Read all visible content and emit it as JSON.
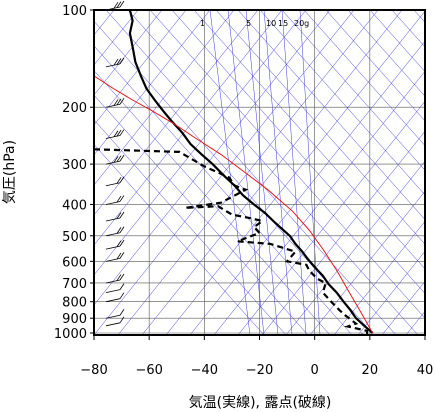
{
  "chart_data": {
    "type": "line",
    "xlabel": "気温(実線), 露点(破線)",
    "ylabel": "気圧(hPa)",
    "xlim": [
      -80,
      40
    ],
    "ylim": [
      1050,
      100
    ],
    "y_scale": "log",
    "x_ticks": [
      -80,
      -60,
      -40,
      -20,
      0,
      20,
      40
    ],
    "y_ticks": [
      100,
      200,
      300,
      400,
      500,
      600,
      700,
      800,
      900,
      1000
    ],
    "mixing_ratio_labels": [
      "1",
      "5",
      "10",
      "15",
      "20g"
    ],
    "series": [
      {
        "style": "solid",
        "color": "#000000",
        "points": [
          [
            -67,
            100
          ],
          [
            -66,
            108
          ],
          [
            -67,
            118
          ],
          [
            -66,
            130
          ],
          [
            -65,
            145
          ],
          [
            -63,
            160
          ],
          [
            -61,
            175
          ],
          [
            -58,
            190
          ],
          [
            -55,
            205
          ],
          [
            -52,
            220
          ],
          [
            -48,
            240
          ],
          [
            -45,
            260
          ],
          [
            -41,
            280
          ],
          [
            -37,
            300
          ],
          [
            -33,
            325
          ],
          [
            -29,
            350
          ],
          [
            -26,
            375
          ],
          [
            -22,
            400
          ],
          [
            -18,
            425
          ],
          [
            -15,
            450
          ],
          [
            -12,
            475
          ],
          [
            -9,
            500
          ],
          [
            -7,
            530
          ],
          [
            -4.5,
            560
          ],
          [
            -2.5,
            590
          ],
          [
            0,
            625
          ],
          [
            3,
            665
          ],
          [
            5,
            705
          ],
          [
            8,
            750
          ],
          [
            10.5,
            800
          ],
          [
            13,
            850
          ],
          [
            15,
            900
          ],
          [
            18,
            950
          ],
          [
            21,
            1000
          ]
        ]
      },
      {
        "style": "dashed",
        "color": "#000000",
        "points": [
          [
            -80,
            270
          ],
          [
            -49,
            275
          ],
          [
            -40,
            305
          ],
          [
            -31,
            330
          ],
          [
            -29,
            350
          ],
          [
            -25,
            360
          ],
          [
            -34,
            395
          ],
          [
            -47,
            410
          ],
          [
            -35,
            405
          ],
          [
            -30,
            430
          ],
          [
            -24,
            440
          ],
          [
            -19,
            450
          ],
          [
            -22,
            470
          ],
          [
            -20,
            490
          ],
          [
            -28,
            520
          ],
          [
            -16,
            530
          ],
          [
            -7,
            560
          ],
          [
            -10,
            600
          ],
          [
            -3,
            615
          ],
          [
            -2,
            640
          ],
          [
            1,
            680
          ],
          [
            4,
            700
          ],
          [
            3,
            750
          ],
          [
            6,
            800
          ],
          [
            9,
            850
          ],
          [
            11,
            880
          ],
          [
            15,
            935
          ],
          [
            12,
            955
          ],
          [
            19,
            985
          ],
          [
            19,
            1005
          ],
          [
            17,
            1010
          ]
        ]
      },
      {
        "style": "solid",
        "color": "#e41a1c",
        "points": [
          [
            -80,
            160
          ],
          [
            -73,
            175
          ],
          [
            -66,
            190
          ],
          [
            -59,
            205
          ],
          [
            -51,
            225
          ],
          [
            -43,
            250
          ],
          [
            -34,
            280
          ],
          [
            -26,
            315
          ],
          [
            -17,
            360
          ],
          [
            -8,
            420
          ],
          [
            -2,
            480
          ],
          [
            3,
            550
          ],
          [
            8,
            640
          ],
          [
            13,
            760
          ],
          [
            17,
            870
          ],
          [
            21,
            1000
          ]
        ]
      }
    ],
    "wind_barbs": [
      {
        "pressure": 100,
        "count_lines": 3
      },
      {
        "pressure": 150,
        "count_lines": 3
      },
      {
        "pressure": 200,
        "count_lines": 3
      },
      {
        "pressure": 250,
        "count_lines": 3
      },
      {
        "pressure": 300,
        "count_lines": 3
      },
      {
        "pressure": 350,
        "count_lines": 2
      },
      {
        "pressure": 400,
        "count_lines": 2
      },
      {
        "pressure": 450,
        "count_lines": 2
      },
      {
        "pressure": 500,
        "count_lines": 2
      },
      {
        "pressure": 550,
        "count_lines": 2
      },
      {
        "pressure": 600,
        "count_lines": 2
      },
      {
        "pressure": 700,
        "count_lines": 2
      },
      {
        "pressure": 750,
        "count_lines": 1
      },
      {
        "pressure": 800,
        "count_lines": 1
      },
      {
        "pressure": 900,
        "count_lines": 1
      },
      {
        "pressure": 950,
        "count_lines": 1
      }
    ],
    "grid": true
  }
}
